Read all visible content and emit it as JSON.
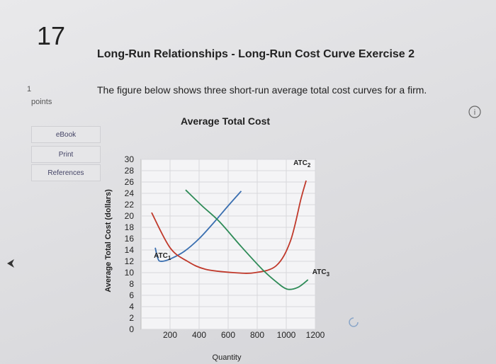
{
  "question": {
    "number": "17",
    "title": "Long-Run Relationships - Long-Run Cost Curve Exercise 2",
    "points": "1",
    "points_label": "points",
    "prompt": "The figure below shows three short-run average total cost curves for a firm."
  },
  "sidebar": [
    "eBook",
    "Print",
    "References"
  ],
  "chart_data": {
    "type": "line",
    "title": "Average Total Cost",
    "x_label": "Quantity",
    "y_label": "Average Total Cost (dollars)",
    "xlim": [
      0,
      1200
    ],
    "xticks": [
      200,
      400,
      600,
      800,
      1000,
      1200
    ],
    "ylim": [
      0,
      30
    ],
    "yticks": [
      0,
      2,
      4,
      6,
      8,
      10,
      12,
      14,
      16,
      18,
      20,
      22,
      24,
      26,
      28,
      30
    ],
    "grid": true,
    "series": [
      {
        "name": "ATC",
        "subscript": "1",
        "color": "#3a6fb0",
        "x": [
          98,
          115,
          135,
          200,
          300,
          400,
          500,
          600,
          690
        ],
        "values": [
          14.4,
          12.6,
          12,
          12.4,
          13.8,
          16,
          18.8,
          21.8,
          24.4
        ]
      },
      {
        "name": "ATC",
        "subscript": "2",
        "color": "#c0392b",
        "x": [
          73,
          200,
          320,
          444,
          640,
          785,
          932,
          1029,
          1102,
          1137
        ],
        "values": [
          20.6,
          14.4,
          12,
          10.6,
          10,
          10,
          11.25,
          15.6,
          23.1,
          26.25
        ]
      },
      {
        "name": "ATC",
        "subscript": "3",
        "color": "#2e8b57",
        "x": [
          307,
          420,
          540,
          690,
          834,
          930,
          1005,
          1080,
          1150
        ],
        "values": [
          24.6,
          21.8,
          19,
          14.6,
          10.6,
          8.4,
          7.1,
          7.4,
          8.75
        ]
      }
    ]
  }
}
